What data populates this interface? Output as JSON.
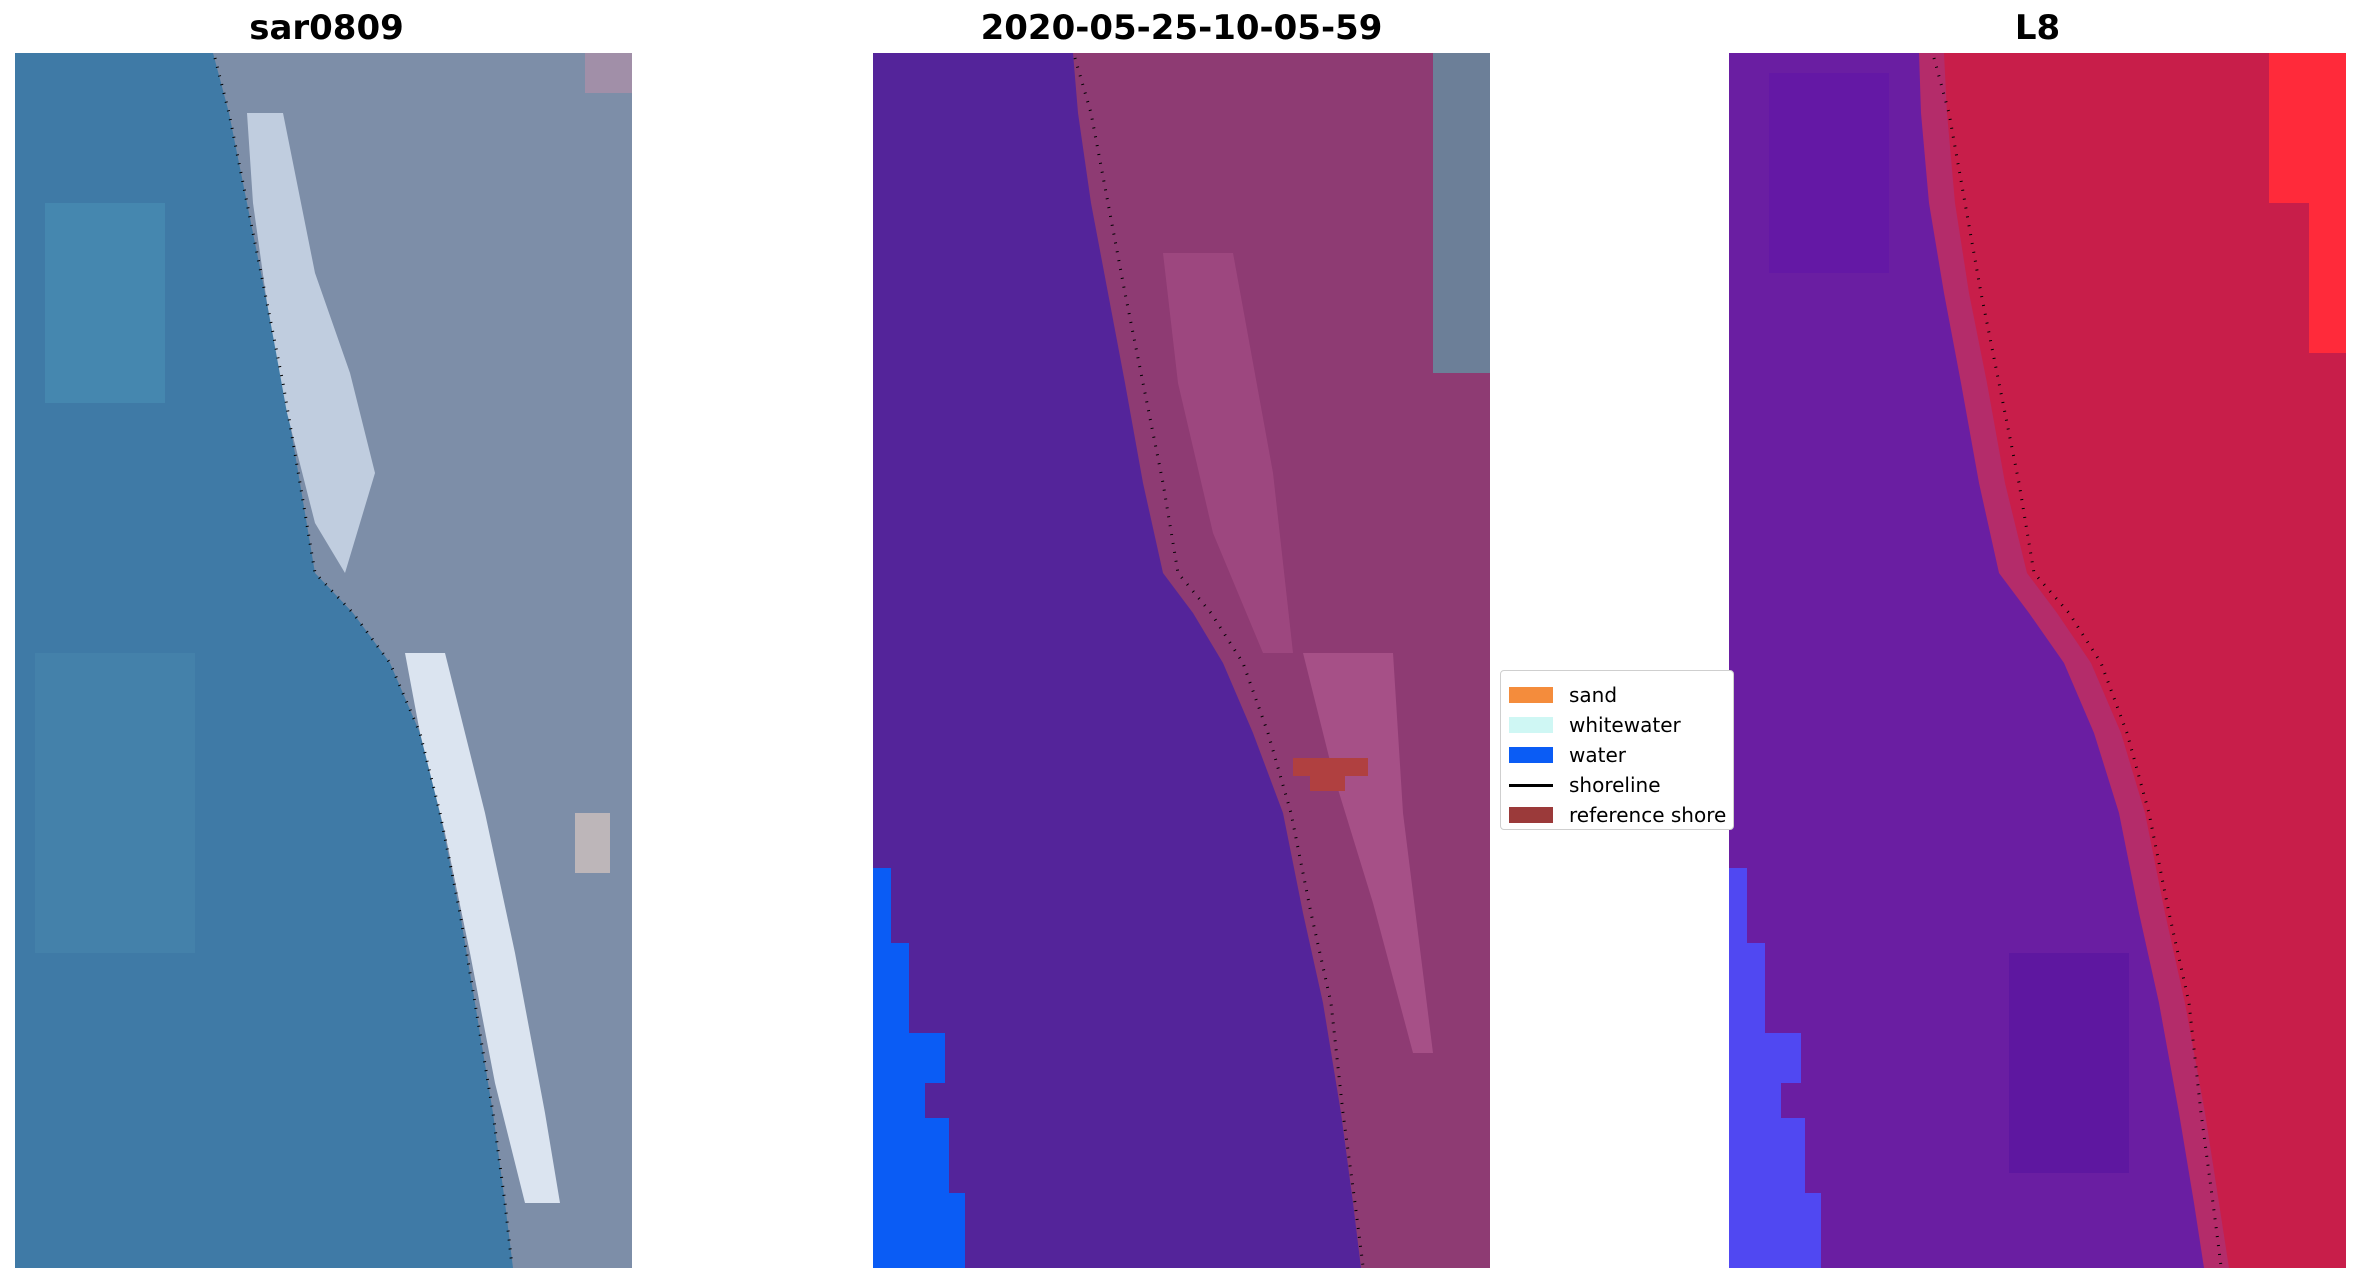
{
  "figure": {
    "titles": [
      "sar0809",
      "2020-05-25-10-05-59",
      "L8"
    ]
  },
  "legend": {
    "entries": [
      {
        "label": "sand",
        "color": "#f48c3c",
        "kind": "patch"
      },
      {
        "label": "whitewater",
        "color": "#cff7f4",
        "kind": "patch"
      },
      {
        "label": "water",
        "color": "#0a5cf5",
        "kind": "patch"
      },
      {
        "label": "shoreline",
        "color": "#000000",
        "kind": "line"
      },
      {
        "label": "reference shore",
        "color": "#9b3a3a",
        "kind": "patch"
      }
    ]
  },
  "colors": {
    "ocean_rgb": "#3f7aa6",
    "land_rgb": "#7d8ea8",
    "surf_rgb": "#d8e2ec",
    "class_water_overlay": "#54249a",
    "class_land_overlay": "#8e3b73",
    "class_water_patch": "#0a5cf5",
    "reference_shore_patch": "#b04040",
    "l8_water": "#6a1ea2",
    "l8_land": "#c81e4a",
    "l8_bright_land": "#ff2a3a",
    "l8_blue_patch": "#5048f2",
    "shoreline_dots": "#000000"
  }
}
